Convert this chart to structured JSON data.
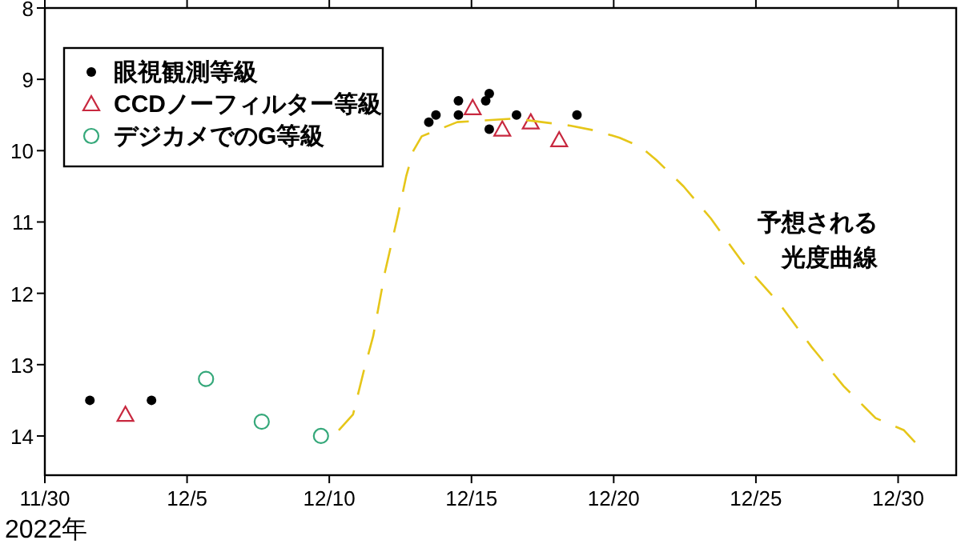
{
  "chart_data": {
    "type": "scatter",
    "xlabel": "2022年",
    "xlim": [
      "2022-11-30",
      "2023-01-01T01:00"
    ],
    "xticks": [
      {
        "value": "2022-11-30",
        "label": "11/30"
      },
      {
        "value": "2022-12-05",
        "label": "12/5"
      },
      {
        "value": "2022-12-10",
        "label": "12/10"
      },
      {
        "value": "2022-12-15",
        "label": "12/15"
      },
      {
        "value": "2022-12-20",
        "label": "12/20"
      },
      {
        "value": "2022-12-25",
        "label": "12/25"
      },
      {
        "value": "2022-12-30",
        "label": "12/30"
      }
    ],
    "ylim": [
      14.55,
      8
    ],
    "yticks": [
      8,
      9,
      10,
      11,
      12,
      13,
      14
    ],
    "grid": false,
    "legend": "top left",
    "annotations": [
      "予想される",
      "光度曲線"
    ],
    "series": [
      {
        "name": "眼視観測等級",
        "color": "#000000",
        "marker": "circle",
        "x": [
          "2022-12-01T14:00",
          "2022-12-03T18:00",
          "2022-12-13T12:00",
          "2022-12-13T18:00",
          "2022-12-14T13:00",
          "2022-12-14T13:00",
          "2022-12-15T12:00",
          "2022-12-15T15:00",
          "2022-12-15T15:00",
          "2022-12-16T14:00",
          "2022-12-18T17:00"
        ],
        "values": [
          13.5,
          13.5,
          9.6,
          9.5,
          9.3,
          9.5,
          9.3,
          9.2,
          9.7,
          9.5,
          9.5
        ]
      },
      {
        "name": "CCDノーフィルター等級",
        "color": "#c8283f",
        "marker": "triangle",
        "x": [
          "2022-12-02T20:00",
          "2022-12-15T01:00",
          "2022-12-16T02:00",
          "2022-12-17T02:00",
          "2022-12-18T02:00"
        ],
        "values": [
          13.7,
          9.4,
          9.7,
          9.6,
          9.85
        ]
      },
      {
        "name": "デジカメでのG等級",
        "color": "#35a87a",
        "marker": "circle_open",
        "x": [
          "2022-12-05T16:00",
          "2022-12-07T15:00",
          "2022-12-09T17:00"
        ],
        "values": [
          13.2,
          13.8,
          14.0
        ]
      },
      {
        "type": "line",
        "color": "#e6c619",
        "marker": "none",
        "line_style": "dashed",
        "x": [
          "2022-12-10T08:00",
          "2022-12-10T20:00",
          "2022-12-11T05:00",
          "2022-12-11T13:00",
          "2022-12-11T23:00",
          "2022-12-12T10:00",
          "2022-12-12T17:00",
          "2022-12-12T23:00",
          "2022-12-13T06:00",
          "2022-12-14T12:00",
          "2022-12-16T12:00",
          "2022-12-18T12:00",
          "2022-12-19T09:00",
          "2022-12-20T05:00",
          "2022-12-20T23:00",
          "2022-12-21T12:00",
          "2022-12-22T11:00",
          "2022-12-23T10:00",
          "2022-12-24T12:00",
          "2022-12-25T20:00",
          "2022-12-26T23:00",
          "2022-12-28T02:00",
          "2022-12-29T05:00",
          "2022-12-30T05:00",
          "2022-12-30T15:00"
        ],
        "values": [
          13.92,
          13.7,
          13.1,
          12.6,
          11.7,
          10.9,
          10.35,
          10.0,
          9.8,
          9.6,
          9.55,
          9.65,
          9.72,
          9.82,
          9.95,
          10.13,
          10.5,
          10.95,
          11.55,
          12.15,
          12.75,
          13.3,
          13.75,
          13.92,
          14.1
        ]
      }
    ]
  }
}
